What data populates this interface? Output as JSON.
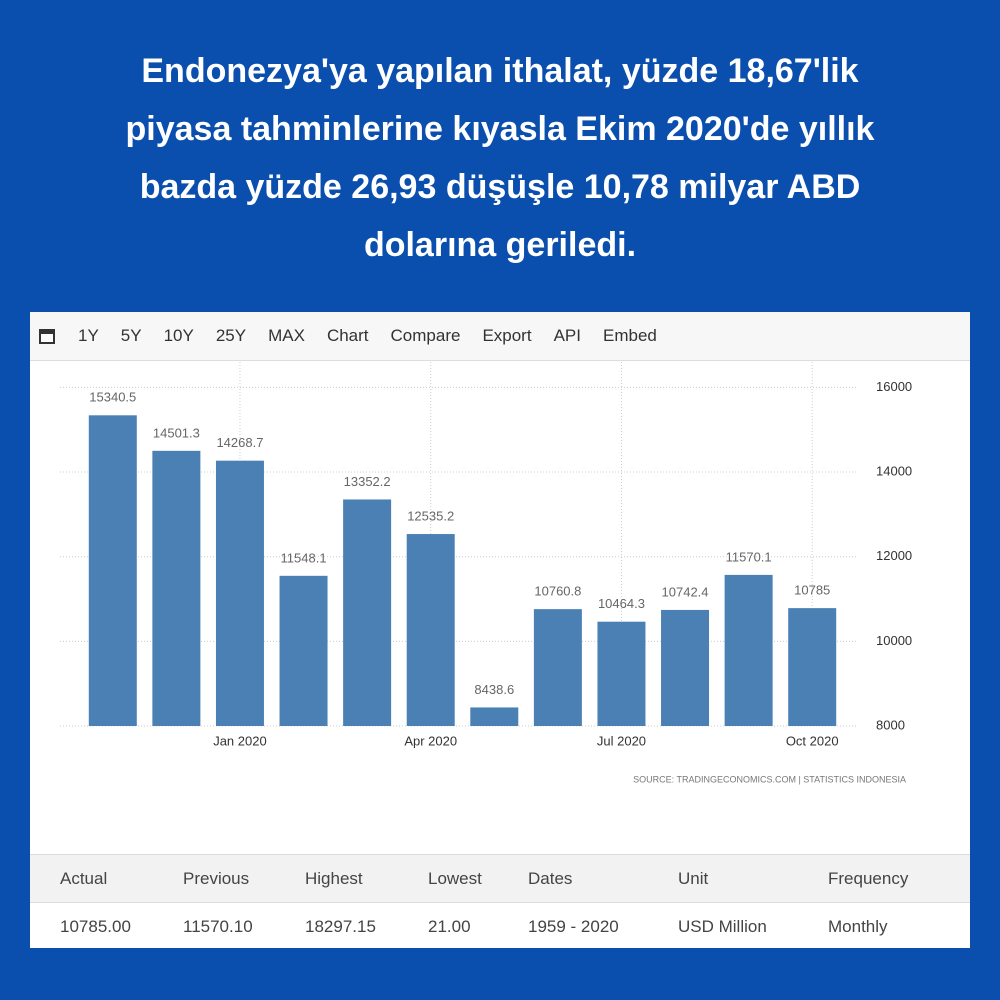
{
  "headline": [
    "Endonezya'ya yapılan ithalat, yüzde 18,67'lik",
    "piyasa tahminlerine kıyasla Ekim 2020'de yıllık",
    "bazda yüzde 26,93 düşüşle 10,78 milyar ABD",
    "dolarına geriledi."
  ],
  "toolbar": [
    "1Y",
    "5Y",
    "10Y",
    "25Y",
    "MAX",
    "Chart",
    "Compare",
    "Export",
    "API",
    "Embed"
  ],
  "chart_data": {
    "type": "bar",
    "categories": [
      null,
      null,
      "Jan 2020",
      null,
      null,
      "Apr 2020",
      null,
      null,
      "Jul 2020",
      null,
      null,
      "Oct 2020"
    ],
    "values": [
      15340.5,
      14501.3,
      14268.7,
      11548.1,
      13352.2,
      12535.2,
      8438.6,
      10760.8,
      10464.3,
      10742.4,
      11570.1,
      10785
    ],
    "color": "#4a80b3",
    "ylim": [
      8000,
      16600
    ],
    "yticks": [
      8000,
      10000,
      12000,
      14000,
      16000
    ],
    "grid": true,
    "source": "SOURCE: TRADINGECONOMICS.COM  |  STATISTICS INDONESIA"
  },
  "table": {
    "header": [
      "Actual",
      "Previous",
      "Highest",
      "Lowest",
      "Dates",
      "Unit",
      "Frequency"
    ],
    "row": [
      "10785.00",
      "11570.10",
      "18297.15",
      "21.00",
      "1959 - 2020",
      "USD Million",
      "Monthly"
    ]
  }
}
